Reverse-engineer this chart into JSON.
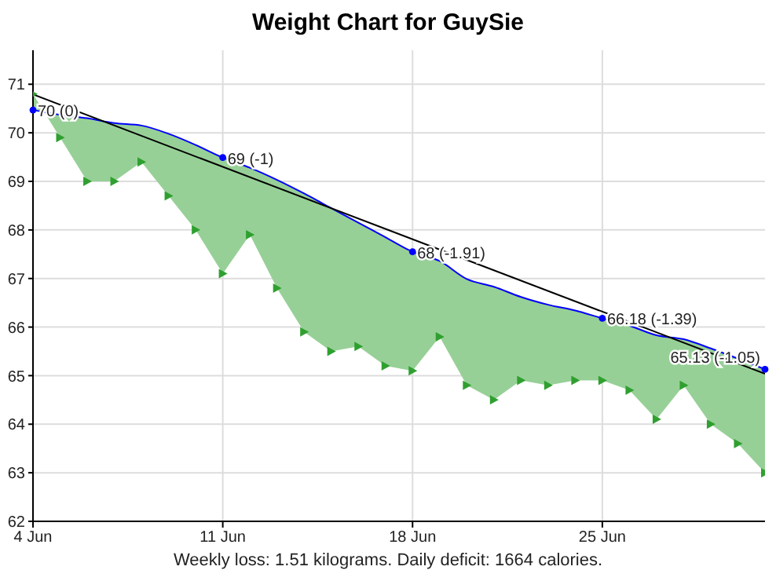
{
  "chart_data": {
    "type": "line",
    "title": "Weight Chart for GuySie",
    "x": [
      "--06-04",
      "--06-05",
      "--06-06",
      "--06-07",
      "--06-08",
      "--06-09",
      "--06-10",
      "--06-11",
      "--06-12",
      "--06-13",
      "--06-14",
      "--06-15",
      "--06-16",
      "--06-17",
      "--06-18",
      "--06-19",
      "--06-20",
      "--06-21",
      "--06-22",
      "--06-23",
      "--06-24",
      "--06-25",
      "--06-26",
      "--06-27",
      "--06-28",
      "--06-29",
      "--06-30",
      "--07-01"
    ],
    "series": [
      {
        "type": "scatter",
        "color": "#2fa02f",
        "marker": "triangle",
        "values": [
          70.8,
          69.9,
          69.0,
          69.0,
          69.4,
          68.7,
          68.0,
          67.1,
          67.9,
          66.8,
          65.9,
          65.5,
          65.6,
          65.2,
          65.1,
          65.8,
          64.8,
          64.5,
          64.9,
          64.8,
          64.9,
          64.9,
          64.7,
          64.1,
          64.8,
          64.0,
          63.6,
          63.0
        ]
      },
      {
        "color": "#0000ff",
        "lower": [
          70.8,
          69.9,
          69.0,
          69.0,
          69.4,
          68.7,
          68.0,
          67.1,
          67.9,
          66.8,
          65.9,
          65.5,
          65.6,
          65.2,
          65.1,
          65.8,
          64.8,
          64.5,
          64.9,
          64.8,
          64.9,
          64.9,
          64.7,
          64.1,
          64.8,
          64.0,
          63.6,
          63.0
        ],
        "upper": [
          70.47,
          70.37,
          70.3,
          70.2,
          70.15,
          69.98,
          69.75,
          69.49,
          69.28,
          69.03,
          68.75,
          68.45,
          68.15,
          67.85,
          67.55,
          67.36,
          66.99,
          66.83,
          66.62,
          66.46,
          66.34,
          66.18,
          66.03,
          65.83,
          65.75,
          65.56,
          65.35,
          65.13
        ],
        "values": [
          70.47,
          70.37,
          70.3,
          70.2,
          70.15,
          69.98,
          69.75,
          69.49,
          69.28,
          69.03,
          68.75,
          68.45,
          68.15,
          67.85,
          67.55,
          67.36,
          66.99,
          66.83,
          66.62,
          66.46,
          66.34,
          66.18,
          66.03,
          65.83,
          65.75,
          65.56,
          65.35,
          65.13
        ],
        "value_labels": [
          "70 (0)",
          null,
          null,
          null,
          null,
          null,
          null,
          "69 (-1)",
          null,
          null,
          null,
          null,
          null,
          null,
          "68 (-1.91)",
          null,
          null,
          null,
          null,
          null,
          null,
          "66.18 (-1.39)",
          null,
          null,
          null,
          null,
          null,
          "65.13 (-1.05)"
        ]
      },
      {
        "color": "#000000",
        "x": [
          "--06-04",
          "--07-01"
        ],
        "values": [
          70.79,
          65.04
        ]
      }
    ],
    "xlim": [
      "--06-04",
      "--07-01"
    ],
    "xticks": [
      {
        "value": "--06-04",
        "label": "4 Jun"
      },
      {
        "value": "--06-11",
        "label": "11 Jun"
      },
      {
        "value": "--06-18",
        "label": "18 Jun"
      },
      {
        "value": "--06-25",
        "label": "25 Jun"
      }
    ],
    "ylim": [
      62,
      71.7
    ],
    "yticks": [
      62,
      63,
      64,
      65,
      66,
      67,
      68,
      69,
      70,
      71
    ],
    "grid": true,
    "annotations": [
      "Weekly loss: 1.51 kilograms. Daily deficit: 1664 calories."
    ]
  }
}
